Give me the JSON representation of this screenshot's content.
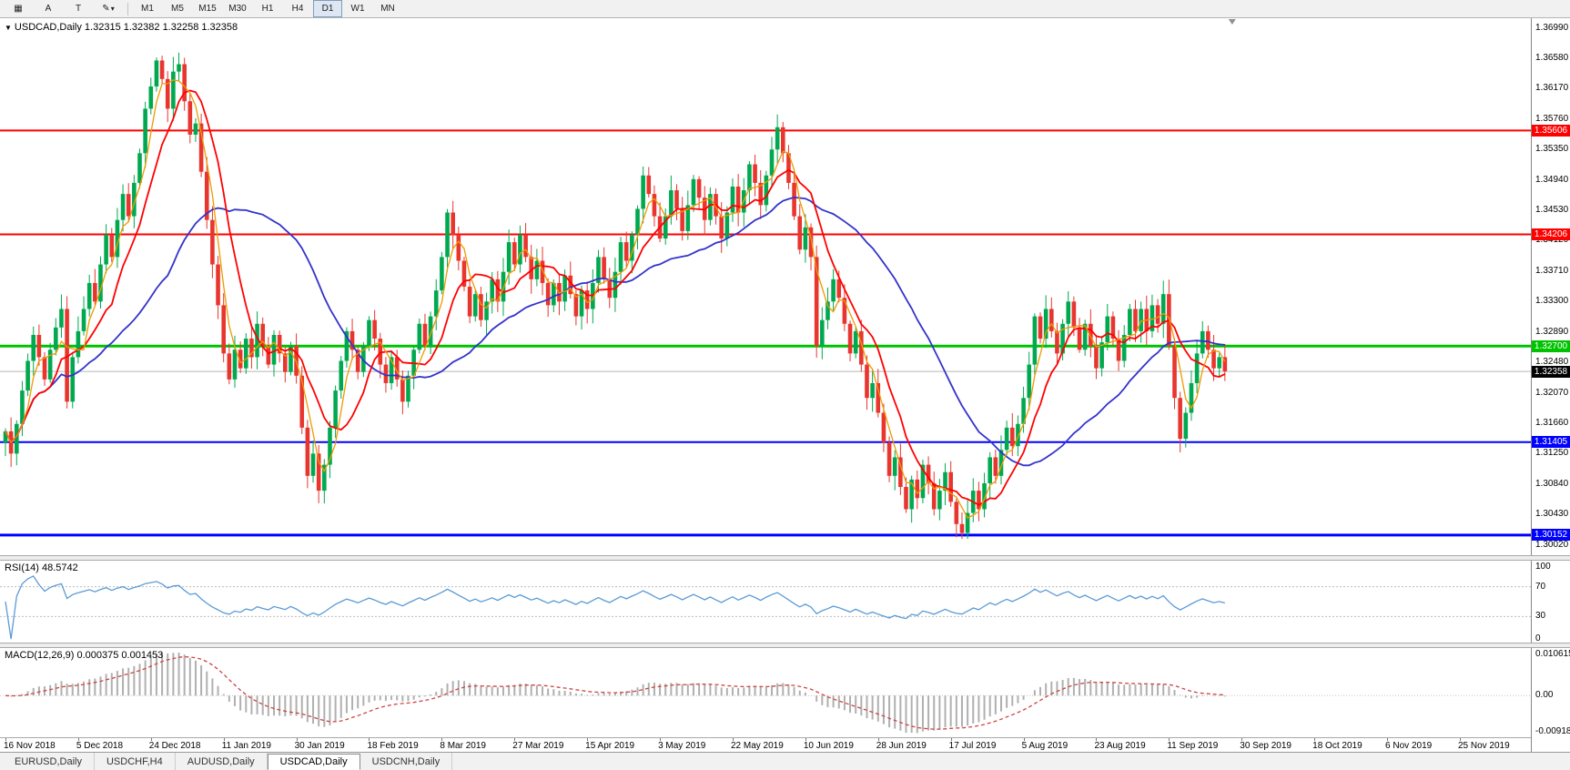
{
  "toolbar": {
    "icon_buttons": [
      {
        "name": "chart-window-icon",
        "glyph": "▦"
      },
      {
        "name": "annotation-a-button",
        "glyph": "A"
      },
      {
        "name": "text-tool-button",
        "glyph": "T"
      },
      {
        "name": "draw-tools-button",
        "glyph": "✎",
        "dropdown": "▾"
      }
    ],
    "timeframes": [
      "M1",
      "M5",
      "M15",
      "M30",
      "H1",
      "H4",
      "D1",
      "W1",
      "MN"
    ],
    "active_timeframe": "D1"
  },
  "chart_data": {
    "type": "candlestick",
    "collapse_marker": "▼",
    "symbol_title": "USDCAD,Daily 1.32315 1.32382 1.32258 1.32358",
    "symbol": "USDCAD",
    "timeframe": "Daily",
    "ohlc": {
      "open": "1.32315",
      "high": "1.32382",
      "low": "1.32258",
      "close": "1.32358"
    },
    "y_ticks": [
      "1.36990",
      "1.36580",
      "1.36170",
      "1.35760",
      "1.35350",
      "1.34940",
      "1.34530",
      "1.34120",
      "1.33710",
      "1.33300",
      "1.32890",
      "1.32480",
      "1.32070",
      "1.31660",
      "1.31250",
      "1.30840",
      "1.30430",
      "1.30020"
    ],
    "y_range": [
      1.2988,
      1.3712
    ],
    "x_labels": [
      "16 Nov 2018",
      "5 Dec 2018",
      "24 Dec 2018",
      "11 Jan 2019",
      "30 Jan 2019",
      "18 Feb 2019",
      "8 Mar 2019",
      "27 Mar 2019",
      "15 Apr 2019",
      "3 May 2019",
      "22 May 2019",
      "10 Jun 2019",
      "28 Jun 2019",
      "17 Jul 2019",
      "5 Aug 2019",
      "23 Aug 2019",
      "11 Sep 2019",
      "30 Sep 2019",
      "18 Oct 2019",
      "6 Nov 2019",
      "25 Nov 2019"
    ],
    "bars_per_label": 13,
    "first_open": 1.314,
    "closes": [
      1.3155,
      1.3125,
      1.3165,
      1.321,
      1.325,
      1.3285,
      1.3255,
      1.3225,
      1.3265,
      1.3295,
      1.332,
      1.3195,
      1.3255,
      1.329,
      1.332,
      1.3355,
      1.333,
      1.338,
      1.342,
      1.339,
      1.344,
      1.3475,
      1.3445,
      1.349,
      1.353,
      1.359,
      1.362,
      1.3655,
      1.363,
      1.359,
      1.364,
      1.365,
      1.36,
      1.3555,
      1.357,
      1.3505,
      1.344,
      1.338,
      1.3325,
      1.326,
      1.3225,
      1.3265,
      1.324,
      1.328,
      1.3255,
      1.33,
      1.327,
      1.3245,
      1.3285,
      1.326,
      1.3235,
      1.327,
      1.323,
      1.316,
      1.3095,
      1.3125,
      1.3075,
      1.311,
      1.316,
      1.321,
      1.325,
      1.329,
      1.3265,
      1.3235,
      1.327,
      1.3305,
      1.328,
      1.3245,
      1.322,
      1.3255,
      1.3225,
      1.3195,
      1.323,
      1.3265,
      1.33,
      1.327,
      1.331,
      1.3345,
      1.339,
      1.345,
      1.342,
      1.3385,
      1.335,
      1.331,
      1.334,
      1.3305,
      1.333,
      1.336,
      1.333,
      1.337,
      1.341,
      1.338,
      1.342,
      1.339,
      1.336,
      1.3385,
      1.3355,
      1.3325,
      1.3355,
      1.333,
      1.3365,
      1.334,
      1.331,
      1.3345,
      1.332,
      1.3355,
      1.339,
      1.336,
      1.3335,
      1.337,
      1.341,
      1.3385,
      1.342,
      1.3455,
      1.35,
      1.3475,
      1.3445,
      1.3415,
      1.3445,
      1.348,
      1.3455,
      1.3425,
      1.346,
      1.3495,
      1.347,
      1.344,
      1.3475,
      1.3445,
      1.3415,
      1.345,
      1.3485,
      1.345,
      1.348,
      1.3515,
      1.349,
      1.346,
      1.35,
      1.3535,
      1.3565,
      1.353,
      1.349,
      1.3445,
      1.34,
      1.343,
      1.339,
      1.327,
      1.3305,
      1.333,
      1.336,
      1.3335,
      1.33,
      1.326,
      1.329,
      1.3245,
      1.32,
      1.322,
      1.318,
      1.314,
      1.3095,
      1.312,
      1.308,
      1.305,
      1.309,
      1.3065,
      1.311,
      1.3085,
      1.305,
      1.3075,
      1.31,
      1.306,
      1.303,
      1.3018,
      1.3045,
      1.3075,
      1.305,
      1.3085,
      1.312,
      1.3095,
      1.313,
      1.316,
      1.3135,
      1.3165,
      1.32,
      1.3245,
      1.331,
      1.328,
      1.332,
      1.329,
      1.326,
      1.33,
      1.333,
      1.3295,
      1.3265,
      1.33,
      1.327,
      1.324,
      1.3275,
      1.331,
      1.328,
      1.325,
      1.3285,
      1.332,
      1.329,
      1.332,
      1.329,
      1.3325,
      1.33,
      1.334,
      1.327,
      1.32,
      1.3145,
      1.318,
      1.322,
      1.326,
      1.329,
      1.3265,
      1.324,
      1.3255,
      1.32358
    ],
    "h_lines": [
      {
        "price": 1.35606,
        "label": "1.35606",
        "color": "#FF0000",
        "width": 2
      },
      {
        "price": 1.34206,
        "label": "1.34206",
        "color": "#FF0000",
        "width": 2
      },
      {
        "price": 1.327,
        "label": "1.32700",
        "color": "#00C300",
        "width": 3
      },
      {
        "price": 1.31405,
        "label": "1.31405",
        "color": "#0000FF",
        "width": 2
      },
      {
        "price": 1.30152,
        "label": "1.30152",
        "color": "#0000FF",
        "width": 3
      }
    ],
    "current_price": {
      "value": 1.32358,
      "label": "1.32358",
      "line_color": "#B8B8B8",
      "badge_color": "#000000"
    },
    "candle_colors": {
      "up": "#00A94F",
      "down": "#E8352E"
    },
    "moving_averages": [
      {
        "name": "slow-ma",
        "period": 30,
        "color": "#3333CC",
        "width": 1.8
      },
      {
        "name": "medium-ma",
        "period": 9,
        "color": "#FF0000",
        "width": 1.8
      },
      {
        "name": "fast-ma",
        "period": 4,
        "color": "#EE9A00",
        "width": 1.3
      }
    ],
    "indicators": {
      "rsi": {
        "label": "RSI(14) 48.5742",
        "period": 14,
        "color": "#5B9BD5",
        "ticks": [
          "100",
          "70",
          "30",
          "0"
        ],
        "levels": [
          70,
          30
        ]
      },
      "macd": {
        "label": "MACD(12,26,9) 0.000375 0.001453",
        "fast": 12,
        "slow": 26,
        "signal": 9,
        "hist_color": "#B0B0B0",
        "signal_color": "#CC4444",
        "ticks": [
          "0.010615",
          "0.00",
          "-0.009185"
        ],
        "max": 0.010615,
        "min": -0.009185
      }
    }
  },
  "tabs": {
    "items": [
      "EURUSD,Daily",
      "USDCHF,H4",
      "AUDUSD,Daily",
      "USDCAD,Daily",
      "USDCNH,Daily"
    ],
    "active": "USDCAD,Daily"
  }
}
